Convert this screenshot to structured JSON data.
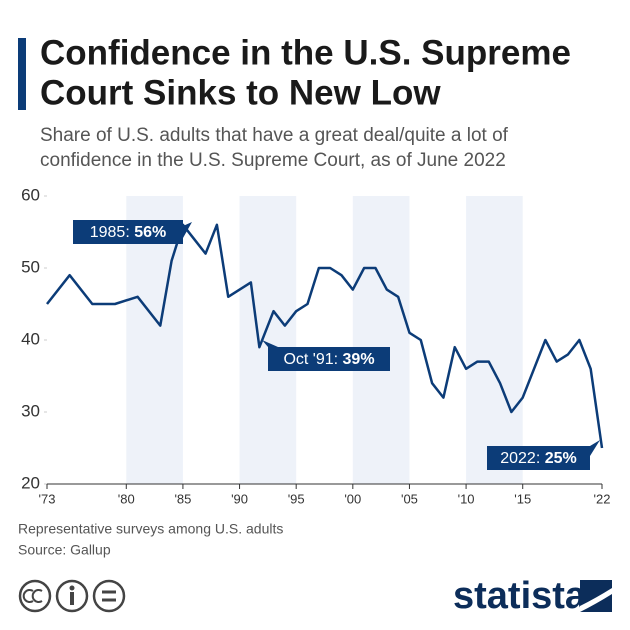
{
  "chart_data": {
    "type": "line",
    "title": [
      "Confidence in the U.S. Supreme",
      "Court Sinks to New Low"
    ],
    "subtitle": [
      "Share of U.S. adults that have a great deal/quite a lot of",
      "confidence in the U.S. Supreme Court, as of June 2022"
    ],
    "x": [
      1973,
      1975,
      1977,
      1979,
      1981,
      1983,
      1984,
      1985,
      1986,
      1987,
      1988,
      1989,
      1991,
      1991.75,
      1993,
      1994,
      1995,
      1996,
      1997,
      1998,
      1999,
      2000,
      2001,
      2002,
      2003,
      2004,
      2005,
      2006,
      2007,
      2008,
      2009,
      2010,
      2011,
      2012,
      2013,
      2014,
      2015,
      2016,
      2017,
      2018,
      2019,
      2020,
      2021,
      2022
    ],
    "values": [
      45,
      49,
      45,
      45,
      46,
      42,
      51,
      56,
      54,
      52,
      56,
      46,
      48,
      39,
      44,
      42,
      44,
      45,
      50,
      50,
      49,
      47,
      50,
      50,
      47,
      46,
      41,
      40,
      34,
      32,
      39,
      36,
      37,
      37,
      34,
      30,
      32,
      36,
      40,
      37,
      38,
      40,
      36,
      25
    ],
    "color": "#0c3c78",
    "xlim": [
      1973,
      2022
    ],
    "xticks": [
      {
        "value": 1973,
        "label": "'73"
      },
      {
        "value": 1980,
        "label": "'80"
      },
      {
        "value": 1985,
        "label": "'85"
      },
      {
        "value": 1990,
        "label": "'90"
      },
      {
        "value": 1995,
        "label": "'95"
      },
      {
        "value": 2000,
        "label": "'00"
      },
      {
        "value": 2005,
        "label": "'05"
      },
      {
        "value": 2010,
        "label": "'10"
      },
      {
        "value": 2015,
        "label": "'15"
      },
      {
        "value": 2022,
        "label": "'22"
      }
    ],
    "ylim": [
      20,
      60
    ],
    "yticks": [
      20,
      30,
      40,
      50,
      60
    ],
    "annotations": [
      {
        "prefix": "1985:",
        "value_label": "56%"
      },
      {
        "prefix": "Oct '91:",
        "value_label": "39%"
      },
      {
        "prefix": "2022:",
        "value_label": "25%"
      }
    ],
    "notes": "Representative surveys among U.S. adults",
    "source": "Source: Gallup",
    "brand": "statista"
  }
}
